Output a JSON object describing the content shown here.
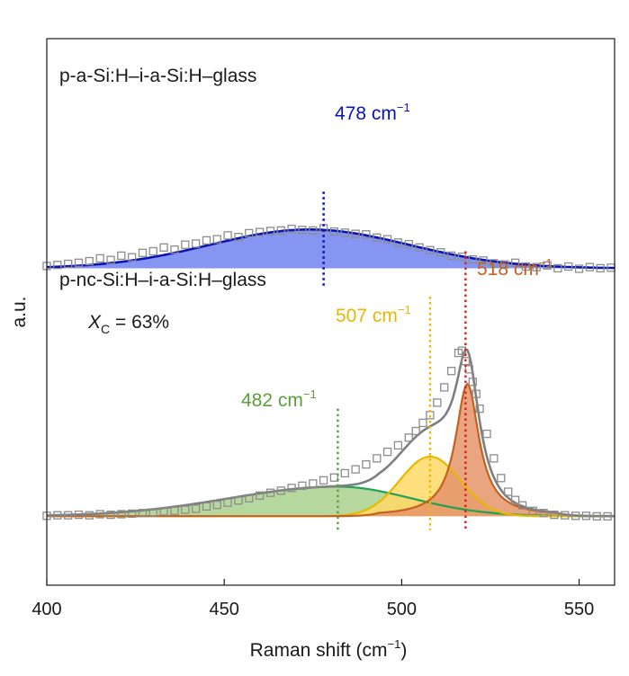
{
  "chart_data": {
    "type": "line",
    "title": "",
    "xlabel": "Raman shift (cm",
    "xlabel_sup": "−1",
    "xlabel_close": ")",
    "ylabel": "a.u.",
    "xlim": [
      400,
      560
    ],
    "ylim": [
      0,
      1
    ],
    "xticks": [
      400,
      450,
      500,
      550
    ],
    "xtick_labels": [
      "400",
      "450",
      "500",
      "550"
    ],
    "grid": false,
    "colors": {
      "top_fill": "#7f8ff0",
      "top_line": "#0a14b4",
      "top_marker": "#0a14b4",
      "fit_line": "#7f7f7f",
      "markers": "#8c8c8c",
      "green_fill": "#a9d18e",
      "green_line": "#1fa257",
      "green_marker": "#5b9e3a",
      "yellow_fill": "#ffd966",
      "yellow_line": "#e8b800",
      "yellow_marker": "#e8b800",
      "orange_fill": "#e5946a",
      "orange_line": "#c5611e",
      "orange_marker": "#d42020",
      "orange_label": "#c5611e",
      "green_label": "#5b9e3a",
      "yellow_label": "#e8b800"
    },
    "panels": [
      {
        "name": "top",
        "label": "p-a-Si:H–i-a-Si:H–glass",
        "baseline": 0.5798,
        "peaks": [
          {
            "center": 474,
            "fwhm": 66,
            "height": 0.071
          }
        ],
        "marker": {
          "x": 478,
          "label": "478 cm",
          "sup": "−1"
        },
        "data_x": [
          400,
          403,
          406,
          409,
          412,
          415,
          418,
          421,
          424,
          427,
          430,
          433,
          436,
          439,
          442,
          445,
          448,
          451,
          454,
          457,
          460,
          463,
          466,
          469,
          472,
          475,
          478,
          481,
          484,
          487,
          490,
          493,
          496,
          499,
          502,
          505,
          508,
          511,
          514,
          517,
          520,
          523,
          526,
          529,
          532,
          535,
          538,
          541,
          544,
          547,
          550,
          553,
          556,
          559
        ],
        "data_y": [
          0.584,
          0.586,
          0.588,
          0.59,
          0.593,
          0.598,
          0.595,
          0.603,
          0.6,
          0.608,
          0.611,
          0.618,
          0.614,
          0.623,
          0.625,
          0.631,
          0.633,
          0.64,
          0.637,
          0.644,
          0.646,
          0.648,
          0.649,
          0.652,
          0.65,
          0.649,
          0.653,
          0.647,
          0.645,
          0.643,
          0.642,
          0.636,
          0.633,
          0.627,
          0.624,
          0.618,
          0.613,
          0.609,
          0.603,
          0.601,
          0.596,
          0.594,
          0.589,
          0.587,
          0.59,
          0.583,
          0.582,
          0.585,
          0.58,
          0.583,
          0.579,
          0.582,
          0.58,
          0.581
        ]
      },
      {
        "name": "bottom",
        "label": "p-nc-Si:H–i-a-Si:H–glass",
        "xc_symbol": "X",
        "xc_sub": "C",
        "xc_value": " = 63%",
        "baseline": 0.1263,
        "peaks": [
          {
            "name": "482",
            "center": 482,
            "fwhm": 58,
            "height": 0.054,
            "asym": true
          },
          {
            "name": "507",
            "center": 508,
            "fwhm": 20,
            "height": 0.109
          },
          {
            "name": "518",
            "center": 518.5,
            "fwhm": 8,
            "height": 0.242
          }
        ],
        "markers": [
          {
            "x": 482,
            "label": "482 cm",
            "sup": "−1"
          },
          {
            "x": 508,
            "label": "507 cm",
            "sup": "−1"
          },
          {
            "x": 518,
            "label": "518 cm",
            "sup": "−1"
          }
        ],
        "data_x": [
          400,
          403,
          406,
          409,
          412,
          415,
          418,
          421,
          424,
          427,
          430,
          433,
          436,
          439,
          442,
          445,
          448,
          451,
          454,
          457,
          460,
          463,
          466,
          469,
          472,
          475,
          478,
          481,
          484,
          487,
          490,
          493,
          496,
          499,
          502,
          504,
          506,
          508,
          510,
          512,
          514,
          516,
          517,
          518,
          519,
          520,
          521,
          522,
          524,
          526,
          528,
          530,
          532,
          534,
          537,
          540,
          543,
          546,
          549,
          552,
          555,
          558
        ],
        "data_y": [
          0.127,
          0.128,
          0.128,
          0.129,
          0.128,
          0.13,
          0.129,
          0.13,
          0.131,
          0.132,
          0.133,
          0.135,
          0.136,
          0.138,
          0.14,
          0.144,
          0.147,
          0.151,
          0.155,
          0.159,
          0.164,
          0.169,
          0.173,
          0.178,
          0.182,
          0.186,
          0.192,
          0.197,
          0.205,
          0.212,
          0.221,
          0.232,
          0.244,
          0.256,
          0.27,
          0.282,
          0.297,
          0.311,
          0.334,
          0.362,
          0.392,
          0.425,
          0.429,
          0.41,
          0.395,
          0.372,
          0.35,
          0.323,
          0.277,
          0.232,
          0.196,
          0.171,
          0.156,
          0.146,
          0.136,
          0.132,
          0.129,
          0.128,
          0.127,
          0.127,
          0.126,
          0.126
        ]
      }
    ]
  }
}
